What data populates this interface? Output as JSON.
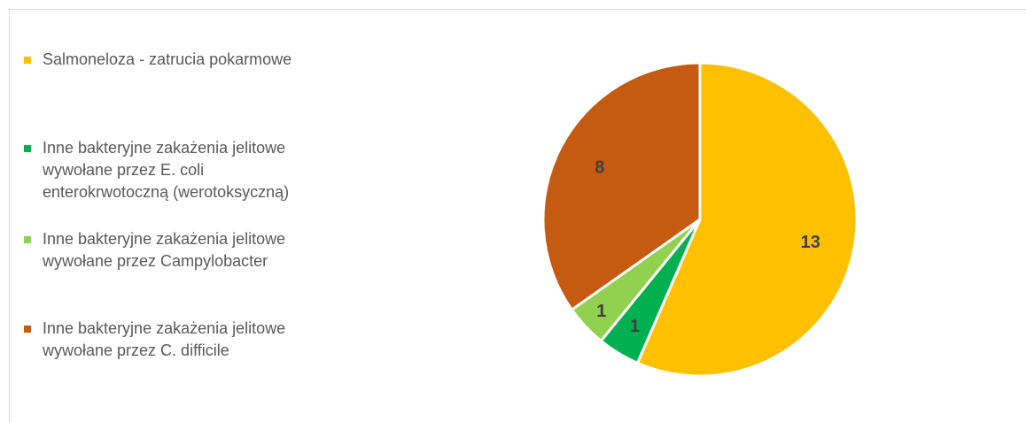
{
  "chart_data": {
    "type": "pie",
    "title": "",
    "legend_position": "left",
    "slices": [
      {
        "label": "Salmoneloza - zatrucia pokarmowe",
        "value": 13,
        "color": "#ffc000"
      },
      {
        "label": "Inne bakteryjne zakażenia jelitowe\nwywołane przez E. coli\nenterokrwotoczną (werotoksyczną)",
        "value": 1,
        "color": "#00b050"
      },
      {
        "label": "Inne bakteryjne zakażenia jelitowe\nwywołane przez Campylobacter",
        "value": 1,
        "color": "#92d050"
      },
      {
        "label": "Inne bakteryjne zakażenia jelitowe\nwywołane przez C. difficile",
        "value": 8,
        "color": "#c55a11"
      }
    ]
  }
}
